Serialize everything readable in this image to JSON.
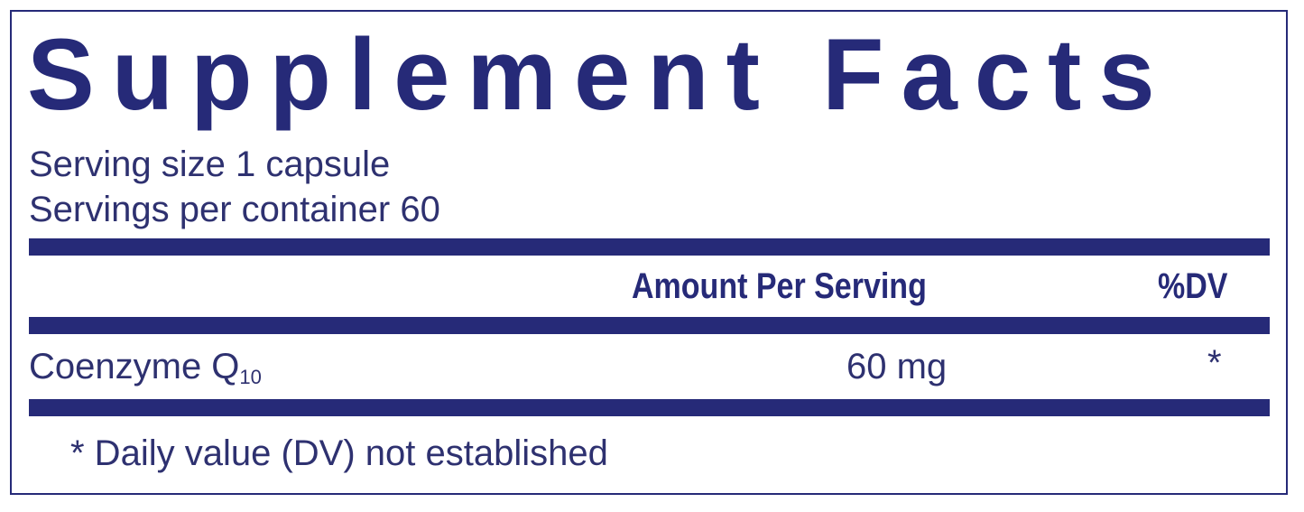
{
  "title": "Supplement Facts",
  "serving_size": "Serving size  1 capsule",
  "servings_per_container": "Servings per container  60",
  "headers": {
    "amount": "Amount Per Serving",
    "dv": "%DV"
  },
  "rows": [
    {
      "name": "Coenzyme Q",
      "name_sub": "10",
      "amount": "60 mg",
      "dv": "*"
    }
  ],
  "footnote": "* Daily value (DV) not established",
  "colors": {
    "primary": "#262a78"
  }
}
